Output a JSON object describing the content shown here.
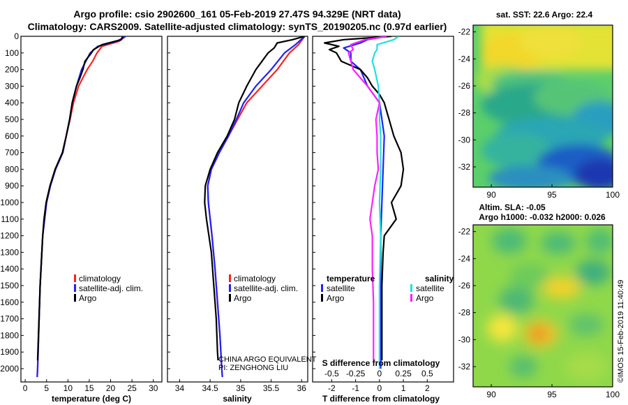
{
  "title_line1": "Argo profile: csio 2902600_161 05-Feb-2019 27.47S 94.329E (NRT data)",
  "title_line2": "Climatology: CARS2009. Satellite-adjusted climatology: synTS_20190205.nc (0.97d earlier)",
  "map_sst_title": "sat. SST: 22.6 Argo: 22.4",
  "map_sla_title1": "Altim. SLA: -0.05",
  "map_sla_title2": "Argo h1000: -0.032 h2000: 0.026",
  "credit_vertical": "©IMOS 15-Feb-2019 11:40:49",
  "float_owner_line1": "CHINA ARGO EQUIVALENT",
  "float_owner_line2": "PI: ZENGHONG LIU",
  "colors": {
    "climatology": "#ff2020",
    "satellite": "#2020ff",
    "argo": "#000000",
    "satellite_s": "#20e0e0",
    "argo_s": "#ff20ff"
  },
  "chart_data": [
    {
      "type": "line",
      "name": "temperature",
      "xlabel": "temperature (deg C)",
      "ylabel": "depth",
      "xlim": [
        -1,
        32
      ],
      "ylim": [
        2080,
        0
      ],
      "xticks": [
        "0",
        "5",
        "10",
        "15",
        "20",
        "25",
        "30"
      ],
      "xtick_values": [
        0,
        5,
        10,
        15,
        20,
        25,
        30
      ],
      "yticks": [
        "0",
        "100",
        "200",
        "300",
        "400",
        "500",
        "600",
        "700",
        "800",
        "900",
        "1000",
        "1100",
        "1200",
        "1300",
        "1400",
        "1500",
        "1600",
        "1700",
        "1800",
        "1900",
        "2000"
      ],
      "ytick_values": [
        0,
        100,
        200,
        300,
        400,
        500,
        600,
        700,
        800,
        900,
        1000,
        1100,
        1200,
        1300,
        1400,
        1500,
        1600,
        1700,
        1800,
        1900,
        2000
      ],
      "legend": [
        "climatology",
        "satellite-adj. clim.",
        "Argo"
      ],
      "series": [
        {
          "name": "climatology",
          "color": "#ff2020",
          "depth": [
            0,
            30,
            60,
            100,
            150,
            200,
            300,
            400,
            500,
            600,
            700,
            800,
            900,
            1000,
            1200,
            1500,
            2000,
            2050
          ],
          "values": [
            23.5,
            22,
            18,
            16.8,
            15.8,
            14.5,
            12.5,
            11.3,
            10.5,
            9.6,
            8.8,
            7.1,
            5.9,
            5,
            4.1,
            3.5,
            2.9,
            2.8
          ]
        },
        {
          "name": "satellite-adj. clim.",
          "color": "#2020ff",
          "depth": [
            0,
            30,
            60,
            100,
            150,
            200,
            300,
            400,
            500,
            600,
            700,
            800,
            900,
            1000,
            1200,
            1500,
            2000,
            2050
          ],
          "values": [
            23.5,
            21.5,
            17,
            15.2,
            14.2,
            13.2,
            12,
            11,
            10.4,
            9.6,
            8.8,
            7.1,
            5.9,
            5,
            4.1,
            3.5,
            2.9,
            2.8
          ]
        },
        {
          "name": "Argo",
          "color": "#000000",
          "depth": [
            0,
            20,
            50,
            80,
            100,
            150,
            200,
            250,
            300,
            400,
            500,
            600,
            700,
            800,
            900,
            1000,
            1100,
            1200,
            1500,
            1800,
            1950
          ],
          "values": [
            22.8,
            22.5,
            18,
            16,
            15.5,
            14,
            13.5,
            12.8,
            12,
            11,
            10.4,
            9.6,
            8.7,
            7,
            5.8,
            4.9,
            4.4,
            4.1,
            3.5,
            3.1,
            2.9
          ]
        }
      ]
    },
    {
      "type": "line",
      "name": "salinity",
      "xlabel": "salinity",
      "ylabel": "depth",
      "xlim": [
        33.8,
        36.1
      ],
      "ylim": [
        2080,
        0
      ],
      "xticks": [
        "34",
        "34.5",
        "35",
        "35.5",
        "36"
      ],
      "xtick_values": [
        34,
        34.5,
        35,
        35.5,
        36
      ],
      "legend": [
        "climatology",
        "satellite-adj. clim.",
        "Argo"
      ],
      "series": [
        {
          "name": "climatology",
          "color": "#ff2020",
          "depth": [
            0,
            50,
            100,
            200,
            300,
            400,
            500,
            600,
            700,
            800,
            900,
            1000,
            1100,
            1200,
            1400,
            1600,
            1800,
            2000,
            2050
          ],
          "values": [
            36.05,
            35.95,
            35.8,
            35.6,
            35.35,
            35.1,
            34.95,
            34.8,
            34.65,
            34.52,
            34.46,
            34.47,
            34.5,
            34.53,
            34.58,
            34.62,
            34.66,
            34.69,
            34.7
          ]
        },
        {
          "name": "satellite-adj. clim.",
          "color": "#2020ff",
          "depth": [
            0,
            50,
            100,
            200,
            300,
            400,
            500,
            600,
            700,
            800,
            900,
            1000,
            1100,
            1200,
            1400,
            1600,
            1800,
            2000,
            2050
          ],
          "values": [
            36.05,
            35.9,
            35.72,
            35.5,
            35.25,
            35.05,
            34.93,
            34.8,
            34.65,
            34.52,
            34.46,
            34.47,
            34.5,
            34.53,
            34.58,
            34.62,
            34.66,
            34.69,
            34.7
          ]
        },
        {
          "name": "Argo",
          "color": "#000000",
          "depth": [
            0,
            20,
            40,
            70,
            100,
            150,
            200,
            300,
            400,
            500,
            600,
            700,
            800,
            900,
            1000,
            1100,
            1200,
            1300,
            1500,
            1700,
            1900,
            1950
          ],
          "values": [
            36.05,
            35.85,
            35.6,
            35.55,
            35.45,
            35.35,
            35.25,
            35.1,
            34.97,
            34.9,
            34.78,
            34.62,
            34.5,
            34.42,
            34.41,
            34.44,
            34.48,
            34.52,
            34.56,
            34.6,
            34.62,
            34.63
          ]
        }
      ]
    },
    {
      "type": "line",
      "name": "difference",
      "xlabel": "T difference from climatology",
      "xlabel_top": "S difference from climatology",
      "xlim": [
        -2.8,
        3.1
      ],
      "ylim": [
        2080,
        0
      ],
      "xticks": [
        "-2",
        "-1",
        "0",
        "1",
        "2"
      ],
      "xtick_values": [
        -2,
        -1,
        0,
        1,
        2
      ],
      "xticks_s": [
        "-0.5",
        "-0.25",
        "0",
        "0.25",
        "0.5"
      ],
      "xtick_s_positions": [
        -2.0,
        -1.0,
        0,
        1.0,
        2.0
      ],
      "legend_title_t": "temperature",
      "legend_title_s": "salinity",
      "legend_t": [
        "satellite",
        "Argo"
      ],
      "legend_s": [
        "satellite",
        "Argo"
      ],
      "series": [
        {
          "name": "T satellite",
          "color": "#2020ff",
          "depth": [
            0,
            20,
            40,
            70,
            100,
            150,
            200,
            300,
            400,
            500,
            600,
            800,
            1000,
            1200,
            1500,
            2000
          ],
          "values": [
            0.3,
            -0.5,
            -0.8,
            -1.5,
            -1.2,
            -1.2,
            -0.8,
            -0.5,
            0,
            0.1,
            0.2,
            0.15,
            0.1,
            0.05,
            0.05,
            0.05
          ]
        },
        {
          "name": "T Argo",
          "color": "#000000",
          "depth": [
            0,
            20,
            40,
            60,
            80,
            100,
            150,
            200,
            250,
            300,
            350,
            400,
            450,
            500,
            600,
            700,
            800,
            900,
            1000,
            1100,
            1200,
            1300,
            1500,
            1800,
            1950
          ],
          "values": [
            0.5,
            -1.5,
            -2.3,
            -1.7,
            -2.1,
            -1.8,
            -1.6,
            -0.8,
            -0.5,
            -0.3,
            0,
            0.2,
            0.3,
            0.4,
            0.6,
            0.9,
            1.0,
            0.9,
            0.5,
            0.7,
            0.2,
            0.15,
            0.1,
            0.1,
            0.1
          ]
        },
        {
          "name": "S satellite",
          "color": "#20e0e0",
          "depth": [
            0,
            20,
            50,
            80,
            100,
            150,
            200,
            300,
            400,
            500,
            600,
            800,
            1000,
            1200,
            1500,
            1800,
            2000
          ],
          "values": [
            0.8,
            0.6,
            -0.1,
            -0.1,
            -0.2,
            -0.3,
            -0.2,
            -0.05,
            0,
            0,
            0.05,
            0.05,
            0,
            0.05,
            0,
            0,
            0
          ]
        },
        {
          "name": "S Argo",
          "color": "#ff20ff",
          "depth": [
            0,
            20,
            50,
            80,
            100,
            150,
            200,
            300,
            400,
            500,
            600,
            700,
            800,
            900,
            1000,
            1100,
            1200,
            1400,
            1600,
            1800,
            1950
          ],
          "values": [
            0.3,
            -0.6,
            -1.2,
            -1.1,
            -1.3,
            -1.2,
            -1.1,
            -0.5,
            0,
            -0.15,
            -0.1,
            -0.1,
            -0.05,
            -0.2,
            -0.3,
            -0.4,
            -0.3,
            -0.3,
            -0.25,
            -0.25,
            -0.25
          ]
        }
      ]
    },
    {
      "type": "heatmap",
      "name": "satellite SST map",
      "title": "sat. SST: 22.6 Argo: 22.4",
      "xlim": [
        88.5,
        100
      ],
      "ylim": [
        -33.5,
        -21.5
      ],
      "xticks": [
        "90",
        "95",
        "100"
      ],
      "xtick_values": [
        90,
        95,
        100
      ],
      "yticks": [
        "-22",
        "-24",
        "-26",
        "-28",
        "-30",
        "-32"
      ],
      "ytick_values": [
        -22,
        -24,
        -26,
        -28,
        -30,
        -32
      ]
    },
    {
      "type": "heatmap",
      "name": "altimetry SLA map",
      "title": "Altim. SLA: -0.05",
      "subtitle": "Argo h1000: -0.032 h2000: 0.026",
      "xlim": [
        88.5,
        100
      ],
      "ylim": [
        -33.5,
        -21.5
      ],
      "xticks": [
        "90",
        "95",
        "100"
      ],
      "xtick_values": [
        90,
        95,
        100
      ],
      "yticks": [
        "-22",
        "-24",
        "-26",
        "-28",
        "-30",
        "-32"
      ],
      "ytick_values": [
        -22,
        -24,
        -26,
        -28,
        -30,
        -32
      ]
    }
  ]
}
